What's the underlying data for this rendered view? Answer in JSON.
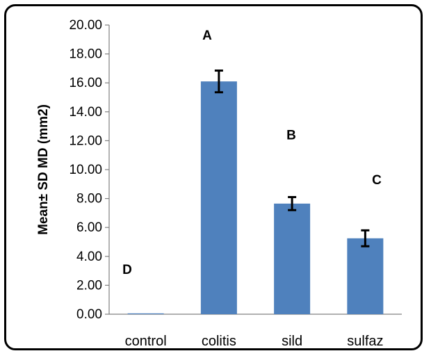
{
  "chart_data": {
    "type": "bar",
    "title": "",
    "xlabel": "",
    "ylabel": "Mean± SD MD (mm2)",
    "ylim": [
      0,
      20
    ],
    "ytick_step": 2,
    "ytick_labels": [
      "0.00",
      "2.00",
      "4.00",
      "6.00",
      "8.00",
      "10.00",
      "12.00",
      "14.00",
      "16.00",
      "18.00",
      "20.00"
    ],
    "categories": [
      "control",
      "colitis",
      "sild",
      "sulfaz"
    ],
    "values": [
      0.03,
      16.1,
      7.65,
      5.25
    ],
    "errors": [
      0.0,
      0.75,
      0.45,
      0.55
    ],
    "annotations": [
      "D",
      "A",
      "B",
      "C"
    ],
    "annotation_y": [
      2.8,
      19.0,
      12.1,
      9.0
    ],
    "grid": false,
    "legend": "none",
    "bar_color": "#4f81bd"
  }
}
